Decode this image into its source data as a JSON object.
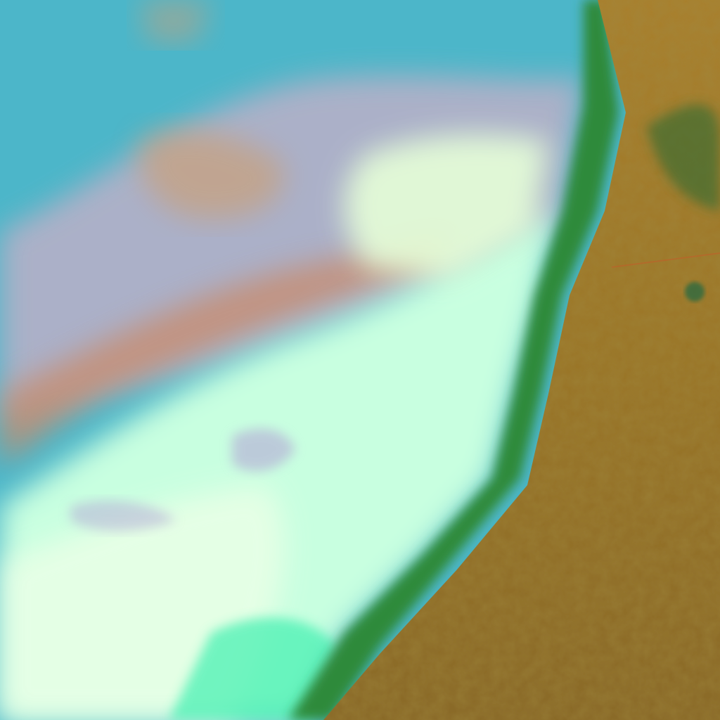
{
  "image": {
    "kind": "false-color satellite imagery",
    "colors": {
      "ocean": "#4cb6c9",
      "haze": "#b9a8c4",
      "dust": "#c98a6a",
      "cloud": "#c8ffe0",
      "cloud_bright": "#e8ffe8",
      "coast_vegetation": "#2f8a3a",
      "land": "#9a7a2c",
      "land_dark": "#7a6220"
    }
  }
}
